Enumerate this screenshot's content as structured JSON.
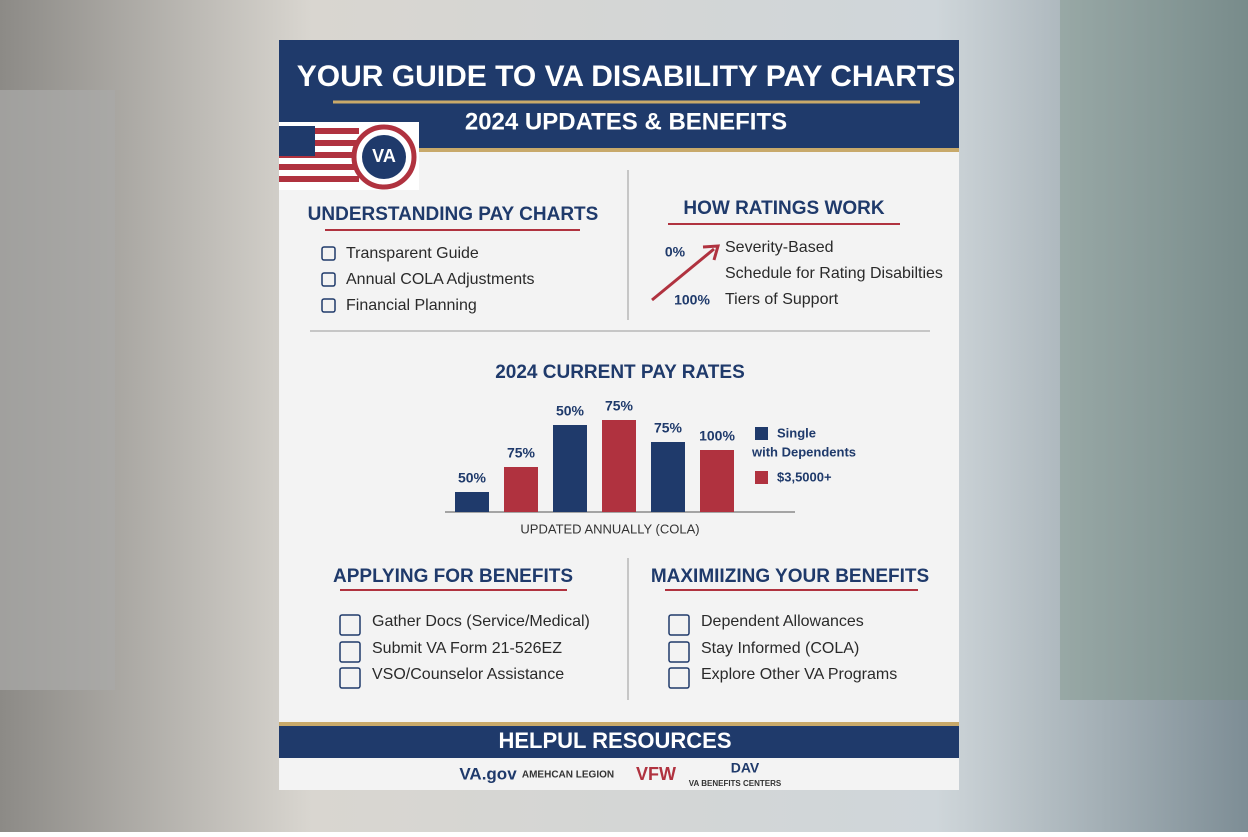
{
  "header": {
    "title": "YOUR GUIDE TO VA DISABILITY PAY CHARTS",
    "subtitle": "2024 UPDATES & BENEFITS",
    "logo": "VA"
  },
  "understanding": {
    "title": "UNDERSTANDING PAY CHARTS",
    "items": [
      "Transparent Guide",
      "Annual COLA Adjustments",
      "Financial Planning"
    ]
  },
  "ratings": {
    "title": "HOW RATINGS WORK",
    "low": "0%",
    "high": "100%",
    "items": [
      "Severity-Based",
      "Schedule for Rating Disabilties",
      "Tiers of Support"
    ]
  },
  "chart_data": {
    "type": "bar",
    "title": "2024 CURRENT PAY RATES",
    "categories": [
      "50%",
      "75%",
      "50%",
      "75%",
      "75%",
      "100%"
    ],
    "values": [
      20,
      45,
      87,
      92,
      70,
      62
    ],
    "colors": [
      "#1f3a6b",
      "#b0323f",
      "#1f3a6b",
      "#b0323f",
      "#1f3a6b",
      "#b0323f"
    ],
    "xlabel": "UPDATED ANNUALLY (COLA)",
    "legend": [
      {
        "label": "Single",
        "color": "#1f3a6b"
      },
      {
        "label": "with Dependents"
      },
      {
        "label": "$3,5000+",
        "color": "#b0323f"
      }
    ]
  },
  "applying": {
    "title": "APPLYING FOR BENEFITS",
    "items": [
      "Gather Docs (Service/Medical)",
      "Submit VA Form 21-526EZ",
      "VSO/Counselor Assistance"
    ]
  },
  "maximizing": {
    "title": "MAXIMIIZING YOUR BENEFITS",
    "items": [
      "Dependent Allowances",
      "Stay Informed (COLA)",
      "Explore Other VA Programs"
    ]
  },
  "resources": {
    "title": "HELPUL RESOURCES",
    "logos": [
      "VA.gov",
      "AMEHCAN LEGION",
      "VFW",
      "DAV",
      "VA BENEFITS CENTERS"
    ]
  }
}
